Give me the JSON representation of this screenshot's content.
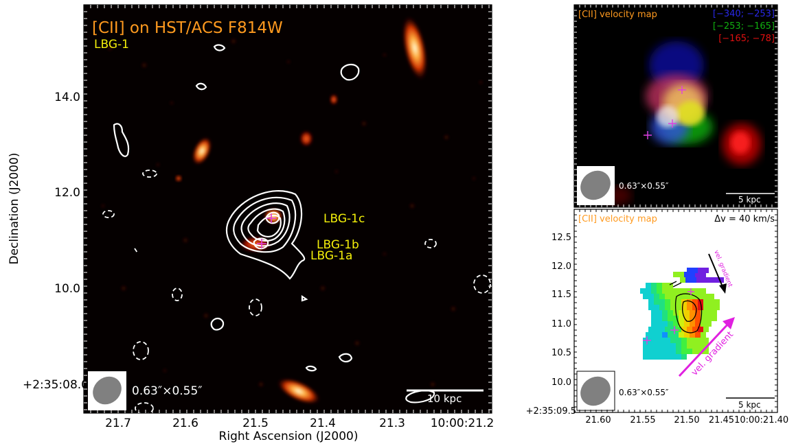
{
  "main_panel": {
    "title": "[CII] on HST/ACS F814W",
    "title_color": "#ff9a1f",
    "target_label": "LBG-1",
    "label_color": "#f4f00a",
    "component_labels": [
      "LBG-1c",
      "LBG-1b",
      "LBG-1a"
    ],
    "beam_label": "0.63″×0.55″",
    "scale_bar_label": "10 kpc",
    "x_axis_title": "Right Ascension (J2000)",
    "y_axis_title": "Declination (J2000)",
    "x_ticks": [
      "21.7",
      "21.6",
      "21.5",
      "21.4",
      "21.3",
      "10:00:21.2"
    ],
    "y_ticks": [
      "14.0",
      "12.0",
      "10.0",
      "+2:35:08.0"
    ]
  },
  "rgb_panel": {
    "title": "[CII] velocity map",
    "title_color": "#ff9a1f",
    "velocity_bins": [
      {
        "label": "[−340; −253]",
        "color": "#2020e0"
      },
      {
        "label": "[−253; −165]",
        "color": "#10b010"
      },
      {
        "label": "[−165;  −78]",
        "color": "#e01010"
      }
    ],
    "beam_label": "0.63″×0.55″",
    "scale_bar_label": "5 kpc"
  },
  "vel_panel": {
    "title": "[CII] velocity map",
    "title_color": "#ff9a1f",
    "delta_v_label": "Δv = 40 km/s",
    "gradient_label_small": "vel. gradient",
    "gradient_label_large": "vel. gradient",
    "gradient_color": "#e020e0",
    "beam_label": "0.63″×0.55″",
    "scale_bar_label": "5 kpc",
    "x_ticks": [
      "21.60",
      "21.55",
      "21.50",
      "21.4510:00:21.40"
    ],
    "y_ticks": [
      "12.5",
      "12.0",
      "11.5",
      "11.0",
      "10.5",
      "10.0",
      "+2:35:09.5"
    ]
  }
}
